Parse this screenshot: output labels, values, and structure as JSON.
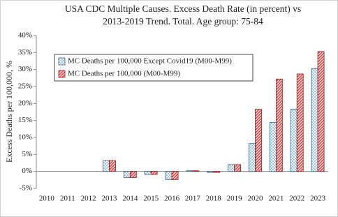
{
  "chart_data": {
    "type": "bar",
    "title": [
      "USA CDC Multiple Causes. Excess Death Rate (in percent) vs",
      "2013-2019 Trend. Total. Age group: 75-84"
    ],
    "y_label": "Excess Deaths per 100,000, %",
    "categories": [
      "2010",
      "2011",
      "2012",
      "2013",
      "2014",
      "2015",
      "2016",
      "2017",
      "2018",
      "2019",
      "2020",
      "2021",
      "2022",
      "2023"
    ],
    "series": [
      {
        "name": "MC Deaths per 100,000 Except Covid19 (M00-M99)",
        "color": "#9dc3e6",
        "values": [
          null,
          null,
          null,
          3.2,
          -1.8,
          -0.9,
          -2.4,
          0.2,
          -0.3,
          2.0,
          8.2,
          14.4,
          18.3,
          30.3
        ]
      },
      {
        "name": "MC Deaths per 100,000 (M00-M99)",
        "color": "#e83a3a",
        "values": [
          null,
          null,
          null,
          3.2,
          -1.8,
          -0.9,
          -2.4,
          0.2,
          -0.3,
          2.0,
          18.3,
          27.2,
          28.7,
          35.3
        ]
      }
    ],
    "ylim": [
      -5,
      40
    ],
    "yticks": [
      {
        "value": -5,
        "label": "-5%"
      },
      {
        "value": 0,
        "label": "0%"
      },
      {
        "value": 5,
        "label": "5%"
      },
      {
        "value": 10,
        "label": "10%"
      },
      {
        "value": 15,
        "label": "15%"
      },
      {
        "value": 20,
        "label": "20%"
      },
      {
        "value": 25,
        "label": "25%"
      },
      {
        "value": 30,
        "label": "30%"
      },
      {
        "value": 35,
        "label": "35%"
      },
      {
        "value": 40,
        "label": "40%"
      }
    ],
    "legend": "upper left",
    "grid": false
  }
}
